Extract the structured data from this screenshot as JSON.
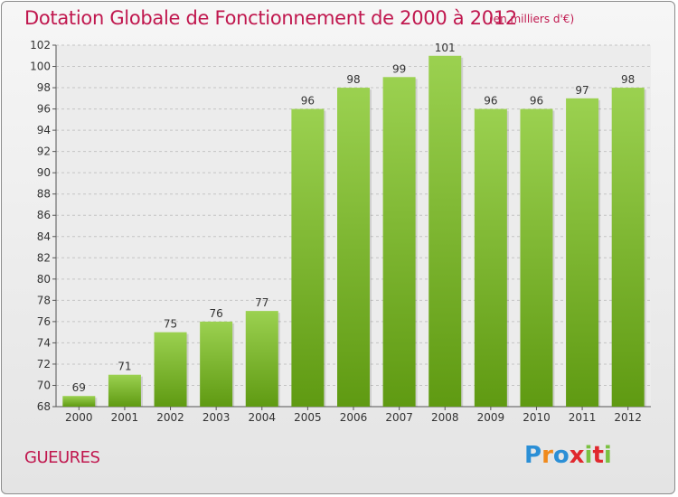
{
  "header": {
    "title": "Dotation Globale de Fonctionnement de 2000 à 2012",
    "unit": "(en milliers d'€)"
  },
  "footer": {
    "place": "GUEURES",
    "logo_letters": [
      "P",
      "r",
      "o",
      "x",
      "i",
      "t",
      "i"
    ]
  },
  "colors": {
    "title": "#c0174e",
    "bar_top": "#9bd150",
    "bar_bottom": "#5f9a12",
    "logo": [
      "#2b8fd6",
      "#f08a1c",
      "#2b8fd6",
      "#e0282e",
      "#7ac142",
      "#e0282e",
      "#7ac142"
    ]
  },
  "chart_data": {
    "type": "bar",
    "title": "Dotation Globale de Fonctionnement de 2000 à 2012",
    "xlabel": "",
    "ylabel": "",
    "categories": [
      "2000",
      "2001",
      "2002",
      "2003",
      "2004",
      "2005",
      "2006",
      "2007",
      "2008",
      "2009",
      "2010",
      "2011",
      "2012"
    ],
    "values": [
      69,
      71,
      75,
      76,
      77,
      96,
      98,
      99,
      101,
      96,
      96,
      97,
      98
    ],
    "value_labels": [
      "69",
      "71",
      "75",
      "76",
      "77",
      "96",
      "98",
      "99",
      "101",
      "96",
      "96",
      "97",
      "98"
    ],
    "ylim": [
      68,
      102
    ],
    "yticks": [
      "68",
      "70",
      "72",
      "74",
      "76",
      "78",
      "80",
      "82",
      "84",
      "86",
      "88",
      "90",
      "92",
      "94",
      "96",
      "98",
      "100",
      "102"
    ],
    "grid": true
  }
}
